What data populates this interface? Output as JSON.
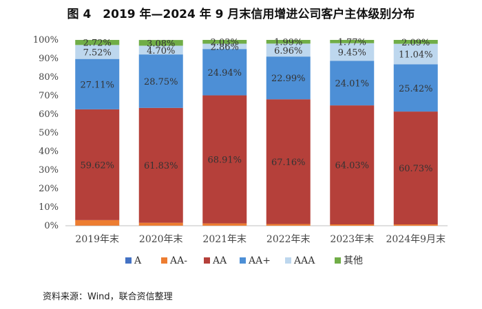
{
  "chart_data": {
    "type": "bar",
    "stacked": true,
    "title": "图 4　2019 年—2024 年 9 月末信用增进公司客户主体级别分布",
    "categories": [
      "2019年末",
      "2020年末",
      "2021年末",
      "2022年末",
      "2023年末",
      "2024年9月末"
    ],
    "ylim": [
      0,
      100
    ],
    "yticks": [
      "0%",
      "10%",
      "20%",
      "30%",
      "40%",
      "50%",
      "60%",
      "70%",
      "80%",
      "90%",
      "100%"
    ],
    "legend_position": "bottom",
    "series": [
      {
        "name": "A",
        "color": "#4472c4",
        "values": [
          0.05,
          0.04,
          0.03,
          0.02,
          0.01,
          0.01
        ],
        "show_labels": false
      },
      {
        "name": "AA-",
        "color": "#ed7d31",
        "values": [
          2.97,
          1.56,
          1.23,
          0.88,
          0.73,
          0.71
        ],
        "show_labels": false
      },
      {
        "name": "AA",
        "color": "#b5403a",
        "values": [
          59.62,
          61.83,
          68.91,
          67.16,
          64.03,
          60.73
        ],
        "show_labels": true
      },
      {
        "name": "AA+",
        "color": "#4d8fd6",
        "values": [
          27.11,
          28.75,
          24.94,
          22.99,
          24.01,
          25.42
        ],
        "show_labels": true
      },
      {
        "name": "AAA",
        "color": "#bdd7ee",
        "values": [
          7.52,
          4.7,
          2.86,
          6.96,
          9.45,
          11.04
        ],
        "show_labels": true
      },
      {
        "name": "其他",
        "color": "#70ad47",
        "values": [
          2.72,
          3.08,
          2.03,
          1.99,
          1.77,
          2.09
        ],
        "show_labels": true
      }
    ],
    "data_labels": {
      "AA": [
        "59.62%",
        "61.83%",
        "68.91%",
        "67.16%",
        "64.03%",
        "60.73%"
      ],
      "AA+": [
        "27.11%",
        "28.75%",
        "24.94%",
        "22.99%",
        "24.01%",
        "25.42%"
      ],
      "AAA": [
        "7.52%",
        "4.70%",
        "2.86%",
        "6.96%",
        "9.45%",
        "11.04%"
      ],
      "其他": [
        "2.72%",
        "3.08%",
        "2.03%",
        "1.99%",
        "1.77%",
        "2.09%"
      ]
    }
  },
  "source": "资料来源：Wind，联合资信整理"
}
